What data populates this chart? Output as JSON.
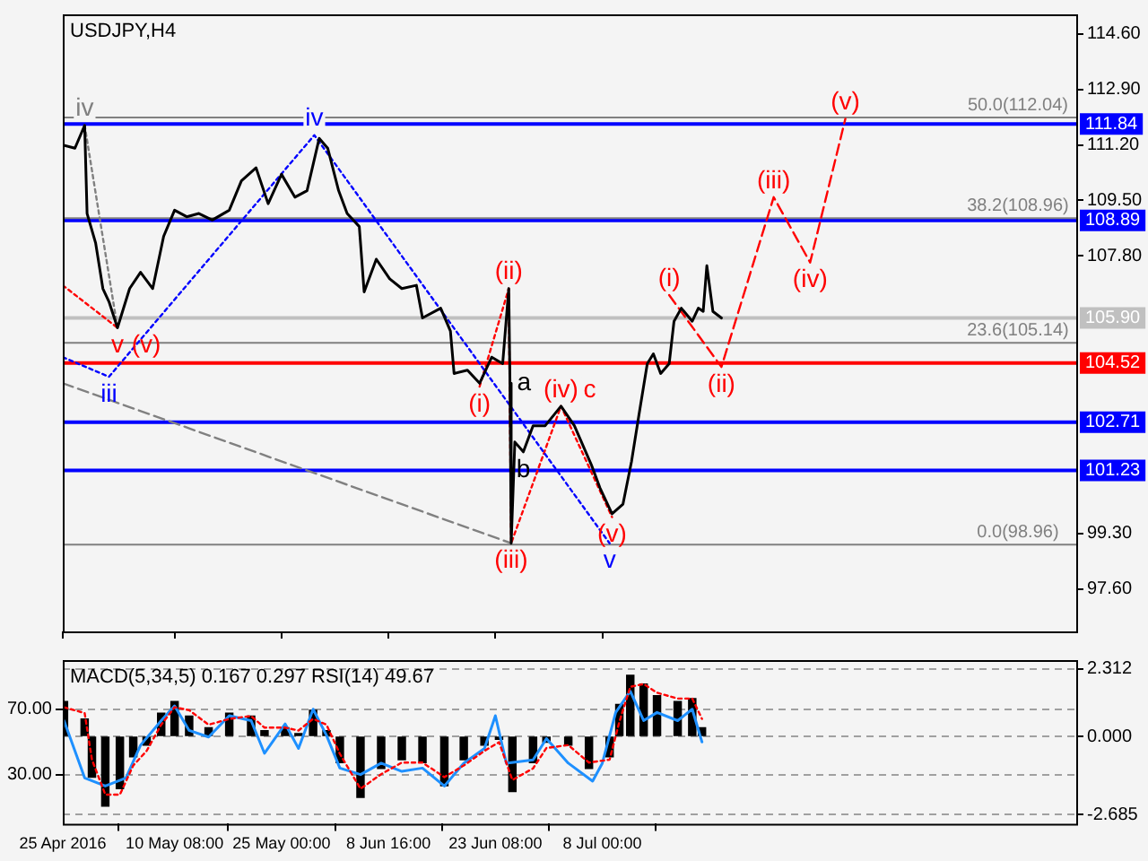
{
  "chart_data": [
    {
      "type": "line",
      "title": "USDJPY,H4",
      "xlim": [
        "2016-04-25T00:00",
        "2016-09-11T00:00"
      ],
      "xticks": [
        {
          "value": "2016-04-25T00:00",
          "label": null
        },
        {
          "value": "2016-05-10T08:00",
          "label": null
        },
        {
          "value": "2016-05-25T00:00",
          "label": null
        },
        {
          "value": "2016-06-08T16:00",
          "label": null
        },
        {
          "value": "2016-06-23T08:00",
          "label": null
        },
        {
          "value": "2016-07-08T00:00",
          "label": null
        }
      ],
      "ylim": [
        96.3,
        115.2
      ],
      "yticks": [
        {
          "value": 97.6,
          "label": "97.60"
        },
        {
          "value": 99.3,
          "label": "99.30"
        },
        {
          "value": 107.8,
          "label": "107.80"
        },
        {
          "value": 109.5,
          "label": "109.50"
        },
        {
          "value": 111.2,
          "label": "111.20"
        },
        {
          "value": 112.9,
          "label": "112.90"
        },
        {
          "value": 114.6,
          "label": "114.60"
        }
      ],
      "tick_labels": "y",
      "grid": false,
      "legend": false,
      "marker": "none",
      "series": [
        {
          "color": "#000000",
          "line_style": "solid",
          "x": [
            "2016-04-25T00:00",
            "2016-04-26T16:00",
            "2016-04-28T00:00",
            "2016-04-28T08:00",
            "2016-04-29T12:00",
            "2016-04-30T12:00",
            "2016-05-01T08:00",
            "2016-05-02T12:00",
            "2016-05-04T04:00",
            "2016-05-05T16:00",
            "2016-05-07T08:00",
            "2016-05-08T20:00",
            "2016-05-10T08:00",
            "2016-05-12T00:00",
            "2016-05-13T16:00",
            "2016-05-15T12:00",
            "2016-05-17T20:00",
            "2016-05-19T12:00",
            "2016-05-21T12:00",
            "2016-05-23T04:00",
            "2016-05-25T00:00",
            "2016-05-26T20:00",
            "2016-05-28T12:00",
            "2016-05-30T04:00",
            "2016-05-31T08:00",
            "2016-06-01T20:00",
            "2016-06-03T00:00",
            "2016-06-04T16:00",
            "2016-06-05T08:00",
            "2016-06-07T00:00",
            "2016-06-08T20:00",
            "2016-06-10T12:00",
            "2016-06-12T12:00",
            "2016-06-13T08:00",
            "2016-06-15T20:00",
            "2016-06-17T04:00",
            "2016-06-17T16:00",
            "2016-06-19T12:00",
            "2016-06-21T04:00",
            "2016-06-22T20:00",
            "2016-06-24T08:00",
            "2016-06-25T04:00",
            "2016-06-25T08:00",
            "2016-06-25T12:00",
            "2016-06-26T00:00",
            "2016-06-27T04:00",
            "2016-06-28T12:00",
            "2016-06-30T04:00",
            "2016-07-02T08:00",
            "2016-07-04T04:00",
            "2016-07-06T12:00",
            "2016-07-07T16:00",
            "2016-07-09T08:00",
            "2016-07-10T20:00",
            "2016-07-12T00:00",
            "2016-07-13T00:00",
            "2016-07-14T04:00",
            "2016-07-15T00:00",
            "2016-07-16T00:00",
            "2016-07-17T04:00",
            "2016-07-17T20:00",
            "2016-07-18T20:00",
            "2016-07-20T08:00",
            "2016-07-21T04:00",
            "2016-07-21T20:00",
            "2016-07-22T08:00",
            "2016-07-23T04:00",
            "2016-07-24T08:00"
          ],
          "values": [
            111.2,
            111.1,
            111.8,
            109.1,
            108.2,
            106.8,
            106.4,
            105.6,
            106.8,
            107.3,
            106.8,
            108.4,
            109.2,
            109.0,
            109.1,
            108.9,
            109.2,
            110.1,
            110.5,
            109.4,
            110.3,
            109.6,
            109.8,
            111.4,
            111.1,
            109.8,
            109.1,
            108.7,
            106.7,
            107.7,
            107.1,
            106.8,
            106.9,
            105.9,
            106.2,
            105.5,
            104.2,
            104.3,
            103.9,
            104.7,
            104.5,
            106.8,
            103.9,
            99.0,
            102.1,
            101.8,
            102.6,
            102.6,
            103.2,
            102.6,
            101.4,
            100.7,
            99.9,
            100.2,
            101.5,
            102.9,
            104.5,
            104.8,
            104.2,
            104.5,
            105.8,
            106.2,
            105.8,
            106.2,
            106.1,
            107.5,
            106.1,
            105.9
          ]
        },
        {
          "color": "#ff0000",
          "line_style": "dashed",
          "x": [
            "2016-07-17T04:00",
            "2016-07-24T08:00",
            "2016-07-31T12:00",
            "2016-08-05T12:00",
            "2016-08-10T08:00"
          ],
          "values": [
            106.6,
            104.4,
            109.6,
            107.6,
            112.0
          ]
        },
        {
          "color": "#0000ff",
          "line_style": "dotted",
          "x": [
            "2016-04-25T00:00",
            "2016-05-01T08:00",
            "2016-05-29T12:00",
            "2016-07-09T00:00"
          ],
          "values": [
            104.7,
            104.1,
            111.5,
            99.0
          ]
        },
        {
          "color": "#808080",
          "line_style": "dashed",
          "x": [
            "2016-04-25T00:00",
            "2016-06-25T12:00"
          ],
          "values": [
            103.9,
            99.0
          ]
        },
        {
          "color": "#ff0000",
          "line_style": "dotted",
          "x": [
            "2016-06-21T04:00",
            "2016-06-25T04:00",
            "2016-06-25T12:00",
            "2016-07-02T08:00",
            "2016-07-09T08:00"
          ],
          "values": [
            103.8,
            106.8,
            99.0,
            103.2,
            99.8
          ]
        },
        {
          "color": "#808080",
          "line_style": "dotted",
          "x": [
            "2016-04-28T00:00",
            "2016-05-02T12:00"
          ],
          "values": [
            111.8,
            105.6
          ]
        },
        {
          "color": "#ff0000",
          "line_style": "dotted",
          "x": [
            "2016-04-25T00:00",
            "2016-05-02T12:00"
          ],
          "values": [
            106.9,
            105.6
          ]
        }
      ],
      "ref_lines": [
        {
          "axis": "y",
          "value": 111.84,
          "label": "111.84",
          "color": "#0000ff"
        },
        {
          "axis": "y",
          "value": 108.89,
          "label": "108.89",
          "color": "#0000ff"
        },
        {
          "axis": "y",
          "value": 105.9,
          "label": "105.90",
          "color": "#c0c0c0"
        },
        {
          "axis": "y",
          "value": 104.52,
          "label": "104.52",
          "color": "#ff0000"
        },
        {
          "axis": "y",
          "value": 102.71,
          "label": "102.71",
          "color": "#0000ff"
        },
        {
          "axis": "y",
          "value": 101.23,
          "label": "101.23",
          "color": "#0000ff"
        },
        {
          "axis": "y",
          "value": 112.04,
          "color": "#808080"
        },
        {
          "axis": "y",
          "value": 108.96,
          "color": "#808080"
        },
        {
          "axis": "y",
          "value": 105.14,
          "color": "#808080"
        },
        {
          "axis": "y",
          "value": 98.96,
          "color": "#808080"
        }
      ],
      "annotations": [
        {
          "text": "50.0(112.04)",
          "x": "2016-09-03T00:00",
          "y": 112.04
        },
        {
          "text": "38.2(108.96)",
          "x": "2016-09-03T00:00",
          "y": 108.96
        },
        {
          "text": "23.6(105.14)",
          "x": "2016-09-03T00:00",
          "y": 105.14
        },
        {
          "text": "0.0(98.96)",
          "x": "2016-09-03T00:00",
          "y": 98.96
        },
        {
          "text": "iv",
          "x": "2016-04-28T00:00",
          "y": 111.8
        },
        {
          "text": "v",
          "x": "2016-05-02T12:00",
          "y": 105.6
        },
        {
          "text": "(v)",
          "x": "2016-05-02T12:00",
          "y": 105.6
        },
        {
          "text": "iii",
          "x": "2016-05-01T08:00",
          "y": 104.1
        },
        {
          "text": "iv",
          "x": "2016-05-29T12:00",
          "y": 111.5
        },
        {
          "text": "(ii)",
          "x": "2016-06-25T04:00",
          "y": 106.8
        },
        {
          "text": "(i)",
          "x": "2016-06-21T04:00",
          "y": 103.8
        },
        {
          "text": "a",
          "x": "2016-06-25T08:00",
          "y": 103.9
        },
        {
          "text": "b",
          "x": "2016-06-27T04:00",
          "y": 101.8
        },
        {
          "text": "(iv)",
          "x": "2016-07-02T08:00",
          "y": 103.2
        },
        {
          "text": "c",
          "x": "2016-07-02T08:00",
          "y": 103.2
        },
        {
          "text": "(iii)",
          "x": "2016-06-25T12:00",
          "y": 99.0
        },
        {
          "text": "(v)",
          "x": "2016-07-09T08:00",
          "y": 99.8
        },
        {
          "text": "v",
          "x": "2016-07-09T00:00",
          "y": 99.0
        },
        {
          "text": "(i)",
          "x": "2016-07-17T04:00",
          "y": 106.6
        },
        {
          "text": "(ii)",
          "x": "2016-07-24T08:00",
          "y": 104.4
        },
        {
          "text": "(iii)",
          "x": "2016-07-31T12:00",
          "y": 109.6
        },
        {
          "text": "(iv)",
          "x": "2016-08-05T12:00",
          "y": 107.6
        },
        {
          "text": "(v)",
          "x": "2016-08-10T08:00",
          "y": 112.0
        }
      ]
    },
    {
      "type": "bar",
      "title": "MACD(5,34,5) 0.167 0.297 RSI(14) 49.67",
      "xlim": [
        "2016-04-25T00:00",
        "2016-09-11T00:00"
      ],
      "xticks": [
        {
          "value": "2016-04-25T00:00",
          "label": "25 Apr 2016"
        },
        {
          "value": "2016-05-10T08:00",
          "label": "10 May 08:00"
        },
        {
          "value": "2016-05-25T00:00",
          "label": "25 May 00:00"
        },
        {
          "value": "2016-06-08T16:00",
          "label": "8 Jun 16:00"
        },
        {
          "value": "2016-06-23T08:00",
          "label": "23 Jun 08:00"
        },
        {
          "value": "2016-07-08T00:00",
          "label": "8 Jul 00:00"
        }
      ],
      "ylim": [
        -3.0,
        2.62
      ],
      "yticks": [
        -2.685,
        {
          "value": 0,
          "label": "0.000"
        },
        2.312
      ],
      "y2lim": [
        0,
        100
      ],
      "y2ticks": [
        {
          "value": 30,
          "label": "30.00"
        },
        {
          "value": 70,
          "label": "70.00"
        }
      ],
      "grid": "y",
      "legend": false,
      "marker": "none",
      "x": [
        "2016-04-25T04:00",
        "2016-04-28T00:00",
        "2016-04-29T00:00",
        "2016-04-30T20:00",
        "2016-05-02T20:00",
        "2016-05-04T16:00",
        "2016-05-06T12:00",
        "2016-05-08T12:00",
        "2016-05-10T08:00",
        "2016-05-12T08:00",
        "2016-05-15T00:00",
        "2016-05-17T20:00",
        "2016-05-20T20:00",
        "2016-05-22T16:00",
        "2016-05-25T12:00",
        "2016-05-27T08:00",
        "2016-05-29T08:00",
        "2016-05-31T04:00",
        "2016-06-02T00:00",
        "2016-06-04T20:00",
        "2016-06-07T16:00",
        "2016-06-10T12:00",
        "2016-06-13T08:00",
        "2016-06-16T08:00",
        "2016-06-19T00:00",
        "2016-06-21T20:00",
        "2016-06-23T20:00",
        "2016-06-25T16:00",
        "2016-06-28T12:00",
        "2016-06-30T08:00",
        "2016-07-03T08:00",
        "2016-07-06T04:00",
        "2016-07-09T00:00",
        "2016-07-10T08:00",
        "2016-07-11T20:00",
        "2016-07-13T16:00",
        "2016-07-15T12:00",
        "2016-07-18T08:00",
        "2016-07-20T08:00",
        "2016-07-21T16:00"
      ],
      "series": [
        {
          "color": "#000000",
          "values": [
            1.2,
            0.6,
            -1.4,
            -2.4,
            -1.8,
            -0.7,
            -0.3,
            0.8,
            1.2,
            0.7,
            0.3,
            0.8,
            0.7,
            0.2,
            0.3,
            0.1,
            0.9,
            0.2,
            -0.9,
            -2.1,
            -1.1,
            -0.8,
            -0.9,
            -1.7,
            -0.8,
            -0.3,
            -0.1,
            -1.9,
            -0.9,
            -0.2,
            -0.3,
            -1.1,
            -0.7,
            1.1,
            2.1,
            1.8,
            1.4,
            1.2,
            1.3,
            0.3
          ]
        },
        {
          "type": "line",
          "color": "#ff0000",
          "line_style": "dotted",
          "values": [
            1.0,
            0.8,
            -0.8,
            -2.0,
            -2.0,
            -1.0,
            -0.5,
            0.4,
            1.0,
            0.9,
            0.4,
            0.6,
            0.7,
            0.3,
            0.3,
            0.2,
            0.6,
            0.4,
            -0.6,
            -1.8,
            -1.3,
            -0.9,
            -0.9,
            -1.4,
            -1.0,
            -0.5,
            -0.2,
            -1.5,
            -1.1,
            -0.4,
            -0.3,
            -0.9,
            -0.8,
            0.5,
            1.7,
            1.8,
            1.5,
            1.3,
            1.3,
            0.6
          ]
        },
        {
          "type": "line",
          "axis": "y2",
          "color": "#1e90ff",
          "line_style": "solid",
          "x": [
            "2016-04-25T04:00",
            "2016-04-28T00:00",
            "2016-04-30T20:00",
            "2016-05-03T16:00",
            "2016-05-05T16:00",
            "2016-05-08T12:00",
            "2016-05-10T08:00",
            "2016-05-12T08:00",
            "2016-05-15T00:00",
            "2016-05-17T20:00",
            "2016-05-20T20:00",
            "2016-05-22T16:00",
            "2016-05-25T12:00",
            "2016-05-27T08:00",
            "2016-05-29T08:00",
            "2016-05-31T04:00",
            "2016-06-02T00:00",
            "2016-06-04T20:00",
            "2016-06-07T16:00",
            "2016-06-10T12:00",
            "2016-06-13T08:00",
            "2016-06-16T08:00",
            "2016-06-19T00:00",
            "2016-06-21T20:00",
            "2016-06-23T08:00",
            "2016-06-24T20:00",
            "2016-06-28T12:00",
            "2016-06-30T08:00",
            "2016-07-03T08:00",
            "2016-07-06T16:00",
            "2016-07-08T00:00",
            "2016-07-09T20:00",
            "2016-07-11T20:00",
            "2016-07-13T16:00",
            "2016-07-15T12:00",
            "2016-07-18T08:00",
            "2016-07-20T08:00",
            "2016-07-21T16:00"
          ],
          "values": [
            63,
            28,
            23,
            28,
            48,
            63,
            72,
            57,
            53,
            66,
            63,
            43,
            61,
            46,
            70,
            54,
            34,
            30,
            37,
            32,
            34,
            23,
            37,
            46,
            66,
            37,
            39,
            52,
            37,
            26,
            37,
            68,
            81,
            63,
            68,
            63,
            70,
            50
          ]
        }
      ]
    }
  ]
}
